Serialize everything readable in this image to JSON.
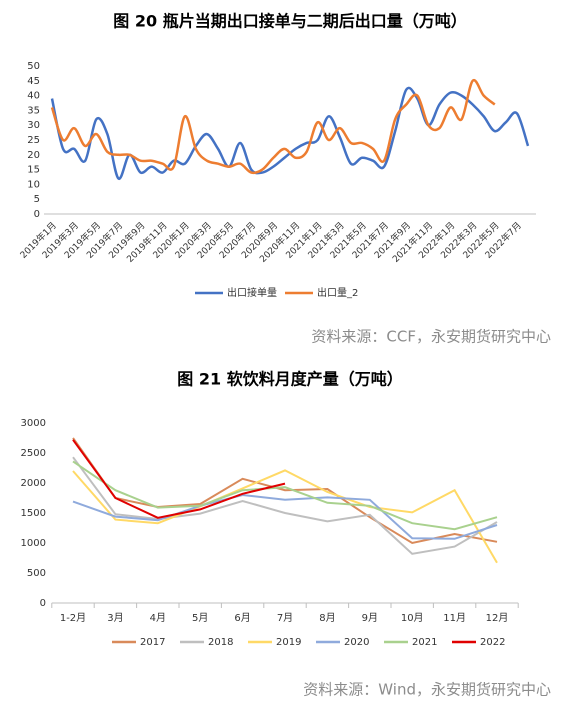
{
  "chart_data": [
    {
      "type": "line",
      "title": "图 20 瓶片当期出口接单与二期后出口量（万吨）",
      "smooth": true,
      "source": "资料来源：CCF，永安期货研究中心",
      "categories": [
        "2019年1月",
        null,
        "2019年3月",
        null,
        "2019年5月",
        null,
        "2019年7月",
        null,
        "2019年9月",
        null,
        "2019年11月",
        null,
        "2020年1月",
        null,
        "2020年3月",
        null,
        "2020年5月",
        null,
        "2020年7月",
        null,
        "2020年9月",
        null,
        "2020年11月",
        null,
        "2021年1月",
        null,
        "2021年3月",
        null,
        "2021年5月",
        null,
        "2021年7月",
        null,
        "2021年9月",
        null,
        "2021年11月",
        null,
        "2022年1月",
        null,
        "2022年3月",
        null,
        "2022年5月",
        null,
        "2022年7月",
        null
      ],
      "series": [
        {
          "name": "出口接单量",
          "color": "#4472c4",
          "values": [
            39,
            22,
            22,
            18,
            32,
            27,
            12,
            20,
            14,
            16,
            14,
            18,
            17,
            23,
            27,
            22,
            16,
            24,
            15,
            14,
            16,
            19,
            22,
            24,
            25,
            33,
            26,
            17,
            19,
            18,
            16,
            28,
            42,
            39,
            30,
            37,
            41,
            40,
            37,
            33,
            28,
            31,
            34,
            23
          ]
        },
        {
          "name": "出口量_2",
          "color": "#ed7d31",
          "values": [
            36,
            25,
            29,
            23,
            27,
            21,
            20,
            20,
            18,
            18,
            17,
            16,
            33,
            22,
            18,
            17,
            16,
            17,
            14,
            15,
            19,
            22,
            19,
            21,
            31,
            25,
            29,
            24,
            24,
            22,
            18,
            32,
            37,
            40,
            30,
            29,
            36,
            32,
            45,
            40,
            37,
            null,
            null,
            null
          ]
        }
      ],
      "ylim": [
        0,
        50
      ],
      "yticks": [
        0,
        5,
        10,
        15,
        20,
        25,
        30,
        35,
        40,
        45,
        50
      ]
    },
    {
      "type": "line",
      "title": "图 21 软饮料月度产量（万吨）",
      "smooth": false,
      "source": "资料来源：Wind，永安期货研究中心",
      "categories": [
        "1-2月",
        "3月",
        "4月",
        "5月",
        "6月",
        "7月",
        "8月",
        "9月",
        "10月",
        "11月",
        "12月"
      ],
      "series": [
        {
          "name": "2017",
          "color": "#d98a5a",
          "values": [
            2750,
            1750,
            1600,
            1650,
            2070,
            1880,
            1900,
            1430,
            1000,
            1150,
            1020
          ]
        },
        {
          "name": "2018",
          "color": "#bfbfbf",
          "values": [
            2430,
            1480,
            1400,
            1490,
            1700,
            1500,
            1360,
            1470,
            820,
            940,
            1350
          ]
        },
        {
          "name": "2019",
          "color": "#ffd966",
          "values": [
            2200,
            1390,
            1330,
            1610,
            1910,
            2210,
            1850,
            1600,
            1510,
            1880,
            670
          ]
        },
        {
          "name": "2020",
          "color": "#8faadc",
          "values": [
            1690,
            1440,
            1380,
            1620,
            1800,
            1720,
            1760,
            1720,
            1080,
            1070,
            1300
          ]
        },
        {
          "name": "2021",
          "color": "#a9d18e",
          "values": [
            2360,
            1880,
            1590,
            1620,
            1880,
            1930,
            1670,
            1620,
            1330,
            1230,
            1430
          ]
        },
        {
          "name": "2022",
          "color": "#e00000",
          "values": [
            2720,
            1750,
            1420,
            1560,
            1820,
            1990,
            null,
            null,
            null,
            null,
            null
          ]
        }
      ],
      "ylim": [
        0,
        3000
      ],
      "yticks": [
        0,
        500,
        1000,
        1500,
        2000,
        2500,
        3000
      ]
    }
  ]
}
